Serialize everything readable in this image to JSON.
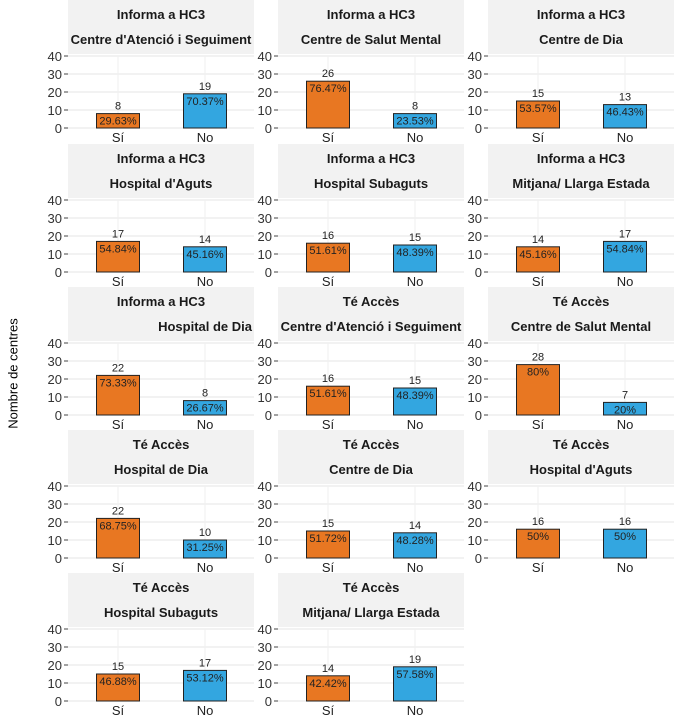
{
  "y_axis_label": "Nombre de centres",
  "colors": {
    "si": "#E87722",
    "no": "#33A6E0",
    "strip": "#F2F2F2"
  },
  "chart_data": [
    {
      "type": "bar",
      "title": "Informa a HC3",
      "subtitle": "Centre d'Atenció i Seguiment",
      "categories": [
        "Sí",
        "No"
      ],
      "values": [
        8,
        19
      ],
      "labels": [
        "29.63%",
        "70.37%"
      ],
      "ylim": [
        0,
        40
      ],
      "yticks": [
        0,
        10,
        20,
        30,
        40
      ],
      "grid": true
    },
    {
      "type": "bar",
      "title": "Informa a HC3",
      "subtitle": "Centre de Salut Mental",
      "categories": [
        "Sí",
        "No"
      ],
      "values": [
        26,
        8
      ],
      "labels": [
        "76.47%",
        "23.53%"
      ],
      "ylim": [
        0,
        40
      ],
      "yticks": [
        0,
        10,
        20,
        30,
        40
      ],
      "grid": true
    },
    {
      "type": "bar",
      "title": "Informa a HC3",
      "subtitle": "Centre de Dia",
      "categories": [
        "Sí",
        "No"
      ],
      "values": [
        15,
        13
      ],
      "labels": [
        "53.57%",
        "46.43%"
      ],
      "ylim": [
        0,
        40
      ],
      "yticks": [
        0,
        10,
        20,
        30,
        40
      ],
      "grid": true
    },
    {
      "type": "bar",
      "title": "Informa a HC3",
      "subtitle": "Hospital d'Aguts",
      "categories": [
        "Sí",
        "No"
      ],
      "values": [
        17,
        14
      ],
      "labels": [
        "54.84%",
        "45.16%"
      ],
      "ylim": [
        0,
        40
      ],
      "yticks": [
        0,
        10,
        20,
        30,
        40
      ],
      "grid": true
    },
    {
      "type": "bar",
      "title": "Informa a HC3",
      "subtitle": "Hospital Subaguts",
      "categories": [
        "Sí",
        "No"
      ],
      "values": [
        16,
        15
      ],
      "labels": [
        "51.61%",
        "48.39%"
      ],
      "ylim": [
        0,
        40
      ],
      "yticks": [
        0,
        10,
        20,
        30,
        40
      ],
      "grid": true
    },
    {
      "type": "bar",
      "title": "Informa a HC3",
      "subtitle": "Mitjana/ Llarga Estada",
      "categories": [
        "Sí",
        "No"
      ],
      "values": [
        14,
        17
      ],
      "labels": [
        "45.16%",
        "54.84%"
      ],
      "ylim": [
        0,
        40
      ],
      "yticks": [
        0,
        10,
        20,
        30,
        40
      ],
      "grid": true
    },
    {
      "type": "bar",
      "title": "Informa a HC3",
      "subtitle": "Hospital de Dia",
      "subtitle_align": "right",
      "categories": [
        "Sí",
        "No"
      ],
      "values": [
        22,
        8
      ],
      "labels": [
        "73.33%",
        "26.67%"
      ],
      "ylim": [
        0,
        40
      ],
      "yticks": [
        0,
        10,
        20,
        30,
        40
      ],
      "grid": true
    },
    {
      "type": "bar",
      "title": "Té Accès",
      "subtitle": "Centre d'Atenció i Seguiment",
      "categories": [
        "Sí",
        "No"
      ],
      "values": [
        16,
        15
      ],
      "labels": [
        "51.61%",
        "48.39%"
      ],
      "ylim": [
        0,
        40
      ],
      "yticks": [
        0,
        10,
        20,
        30,
        40
      ],
      "grid": true
    },
    {
      "type": "bar",
      "title": "Té Accès",
      "subtitle": "Centre de Salut Mental",
      "categories": [
        "Sí",
        "No"
      ],
      "values": [
        28,
        7
      ],
      "labels": [
        "80%",
        "20%"
      ],
      "ylim": [
        0,
        40
      ],
      "yticks": [
        0,
        10,
        20,
        30,
        40
      ],
      "grid": true
    },
    {
      "type": "bar",
      "title": "Té Accès",
      "subtitle": "Hospital de Dia",
      "categories": [
        "Sí",
        "No"
      ],
      "values": [
        22,
        10
      ],
      "labels": [
        "68.75%",
        "31.25%"
      ],
      "ylim": [
        0,
        40
      ],
      "yticks": [
        0,
        10,
        20,
        30,
        40
      ],
      "grid": true
    },
    {
      "type": "bar",
      "title": "Té Accès",
      "subtitle": "Centre de Dia",
      "categories": [
        "Sí",
        "No"
      ],
      "values": [
        15,
        14
      ],
      "labels": [
        "51.72%",
        "48.28%"
      ],
      "ylim": [
        0,
        40
      ],
      "yticks": [
        0,
        10,
        20,
        30,
        40
      ],
      "grid": true
    },
    {
      "type": "bar",
      "title": "Té Accès",
      "subtitle": "Hospital d'Aguts",
      "categories": [
        "Sí",
        "No"
      ],
      "values": [
        16,
        16
      ],
      "labels": [
        "50%",
        "50%"
      ],
      "ylim": [
        0,
        40
      ],
      "yticks": [
        0,
        10,
        20,
        30,
        40
      ],
      "grid": true
    },
    {
      "type": "bar",
      "title": "Té Accès",
      "subtitle": "Hospital Subaguts",
      "categories": [
        "Sí",
        "No"
      ],
      "values": [
        15,
        17
      ],
      "labels": [
        "46.88%",
        "53.12%"
      ],
      "ylim": [
        0,
        40
      ],
      "yticks": [
        0,
        10,
        20,
        30,
        40
      ],
      "grid": true
    },
    {
      "type": "bar",
      "title": "Té Accès",
      "subtitle": "Mitjana/ Llarga Estada",
      "categories": [
        "Sí",
        "No"
      ],
      "values": [
        14,
        19
      ],
      "labels": [
        "42.42%",
        "57.58%"
      ],
      "ylim": [
        0,
        40
      ],
      "yticks": [
        0,
        10,
        20,
        30,
        40
      ],
      "grid": true
    }
  ]
}
